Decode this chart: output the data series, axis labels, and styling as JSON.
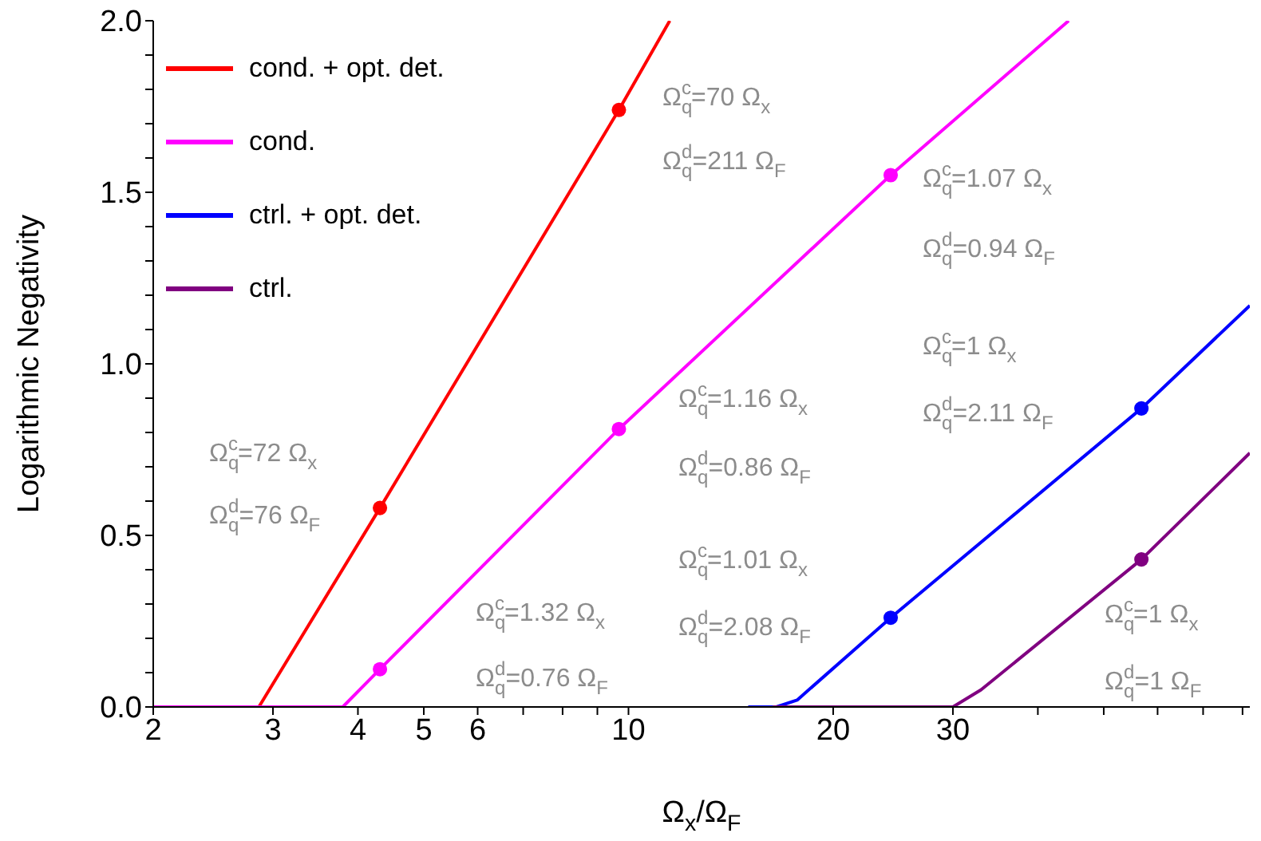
{
  "chart_data": {
    "type": "line",
    "xlabel": "Ω$_{x}$/Ω$_{F}$",
    "ylabel": "Logarithmic Negativity",
    "log": "x",
    "xlim": [
      2,
      82
    ],
    "ylim": [
      0,
      2
    ],
    "xticks": [
      2,
      3,
      4,
      5,
      6,
      {
        "value": 7,
        "label": null
      },
      {
        "value": 8,
        "label": null
      },
      {
        "value": 9,
        "label": null
      },
      10,
      20,
      30,
      {
        "value": 40,
        "label": null
      },
      {
        "value": 50,
        "label": null
      },
      {
        "value": 60,
        "label": null
      },
      {
        "value": 70,
        "label": null
      },
      {
        "value": 80,
        "label": null
      }
    ],
    "yticks": [
      {
        "value": 0,
        "label": "0.0"
      },
      {
        "value": 0.1,
        "label": null
      },
      {
        "value": 0.2,
        "label": null
      },
      {
        "value": 0.3,
        "label": null
      },
      {
        "value": 0.4,
        "label": null
      },
      {
        "value": 0.5,
        "label": "0.5"
      },
      {
        "value": 0.6,
        "label": null
      },
      {
        "value": 0.7,
        "label": null
      },
      {
        "value": 0.8,
        "label": null
      },
      {
        "value": 0.9,
        "label": null
      },
      {
        "value": 1,
        "label": "1.0"
      },
      {
        "value": 1.1,
        "label": null
      },
      {
        "value": 1.2,
        "label": null
      },
      {
        "value": 1.3,
        "label": null
      },
      {
        "value": 1.4,
        "label": null
      },
      {
        "value": 1.5,
        "label": "1.5"
      },
      {
        "value": 1.6,
        "label": null
      },
      {
        "value": 1.7,
        "label": null
      },
      {
        "value": 1.8,
        "label": null
      },
      {
        "value": 1.9,
        "label": null
      },
      {
        "value": 2,
        "label": "2.0"
      }
    ],
    "grid": false,
    "legend": "top left",
    "series": [
      {
        "name": "cond. + opt. det.",
        "marker": "none",
        "color": "#ff0000",
        "x": [
          2,
          2.86,
          4.31,
          9.68,
          11.5
        ],
        "values": [
          0,
          0,
          0.58,
          1.74,
          2.0
        ]
      },
      {
        "name": "cond.",
        "marker": "none",
        "color": "#ff00ff",
        "x": [
          2,
          3.8,
          4.31,
          9.68,
          24.3,
          44.4
        ],
        "values": [
          0,
          0,
          0.11,
          0.81,
          1.55,
          2.0
        ]
      },
      {
        "name": "ctrl. + opt. det.",
        "marker": "none",
        "color": "#0000ff",
        "x": [
          15.0,
          16.5,
          17.7,
          24.3,
          56.8,
          82
        ],
        "values": [
          0,
          0,
          0.02,
          0.26,
          0.87,
          1.17
        ]
      },
      {
        "name": "ctrl.",
        "marker": "none",
        "color": "#800080",
        "x": [
          16.3,
          30,
          33,
          56.8,
          82
        ],
        "values": [
          0,
          0,
          0.05,
          0.43,
          0.74
        ]
      },
      {
        "type": "scatter",
        "marker": "circle",
        "color": "#ff0000",
        "x": [
          4.31,
          9.68
        ],
        "values": [
          0.58,
          1.74
        ]
      },
      {
        "type": "scatter",
        "marker": "circle",
        "color": "#ff00ff",
        "x": [
          4.31,
          9.68,
          24.3
        ],
        "values": [
          0.11,
          0.81,
          1.55
        ]
      },
      {
        "type": "scatter",
        "marker": "circle",
        "color": "#0000ff",
        "x": [
          24.3,
          56.8
        ],
        "values": [
          0.26,
          0.87
        ]
      },
      {
        "type": "scatter",
        "marker": "circle",
        "color": "#800080",
        "x": [
          56.8
        ],
        "values": [
          0.43
        ]
      }
    ],
    "annotations": [
      "Ω$_{q}$$^{c}$=72 Ω$_{x}$",
      "Ω$_{q}$$^{d}$=76 Ω$_{F}$",
      "Ω$_{q}$$^{c}$=70 Ω$_{x}$",
      "Ω$_{q}$$^{d}$=211 Ω$_{F}$",
      "Ω$_{q}$$^{c}$=1.32 Ω$_{x}$",
      "Ω$_{q}$$^{d}$=0.76 Ω$_{F}$",
      "Ω$_{q}$$^{c}$=1.16 Ω$_{x}$",
      "Ω$_{q}$$^{d}$=0.86 Ω$_{F}$",
      "Ω$_{q}$$^{c}$=1.07 Ω$_{x}$",
      "Ω$_{q}$$^{d}$=0.94 Ω$_{F}$",
      "Ω$_{q}$$^{c}$=1.01 Ω$_{x}$",
      "Ω$_{q}$$^{d}$=2.08 Ω$_{F}$",
      "Ω$_{q}$$^{c}$=1 Ω$_{x}$",
      "Ω$_{q}$$^{d}$=2.11 Ω$_{F}$",
      "Ω$_{q}$$^{c}$=1 Ω$_{x}$",
      "Ω$_{q}$$^{d}$=1 Ω$_{F}$"
    ]
  }
}
